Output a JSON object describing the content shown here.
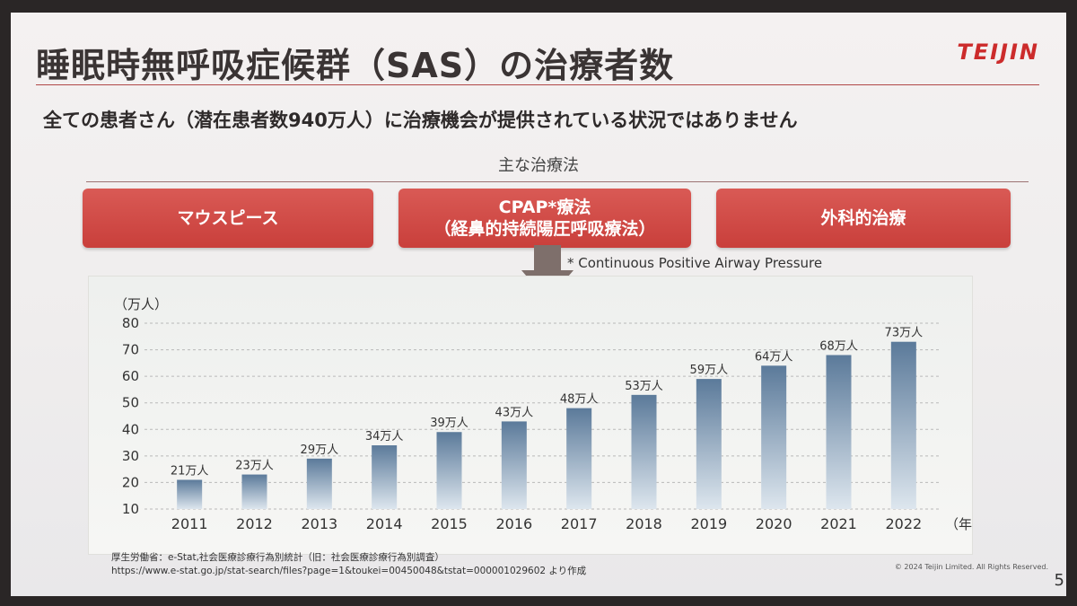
{
  "slide": {
    "title": "睡眠時無呼吸症候群（SAS）の治療者数",
    "logo": "TEIJIN",
    "subtitle": "全ての患者さん（潜在患者数940万人）に治療機会が提供されている状況ではありません",
    "methods_heading": "主な治療法",
    "methods": [
      {
        "line1": "マウスピース",
        "line2": ""
      },
      {
        "line1": "CPAP*療法",
        "line2": "（経鼻的持続陽圧呼吸療法）"
      },
      {
        "line1": "外科的治療",
        "line2": ""
      }
    ],
    "footnote": "* Continuous Positive Airway Pressure",
    "source_line1": "厚生労働省：e-Stat,社会医療診療行為別統計（旧：社会医療診療行為別調査）",
    "source_line2": "https://www.e-stat.go.jp/stat-search/files?page=1&toukei=00450048&tstat=000001029602 より作成",
    "copyright": "© 2024 Teijin Limited. All Rights Reserved.",
    "page_number": "5",
    "colors": {
      "title_text": "#3a3434",
      "accent_red": "#c93f3b",
      "logo_red": "#cc2b2b",
      "bar_top": "#5b7a9a",
      "bar_bottom": "#dde6ee"
    }
  },
  "chart_data": {
    "type": "bar",
    "categories": [
      "2011",
      "2012",
      "2013",
      "2014",
      "2015",
      "2016",
      "2017",
      "2018",
      "2019",
      "2020",
      "2021",
      "2022"
    ],
    "values": [
      21,
      23,
      29,
      34,
      39,
      43,
      48,
      53,
      59,
      64,
      68,
      73
    ],
    "data_labels": [
      "21万人",
      "23万人",
      "29万人",
      "34万人",
      "39万人",
      "43万人",
      "48万人",
      "53万人",
      "59万人",
      "64万人",
      "68万人",
      "73万人"
    ],
    "ylabel": "（万人）",
    "xlabel": "（年）",
    "ylim": [
      10,
      80
    ],
    "yticks": [
      10,
      20,
      30,
      40,
      50,
      60,
      70,
      80
    ],
    "grid": true
  }
}
